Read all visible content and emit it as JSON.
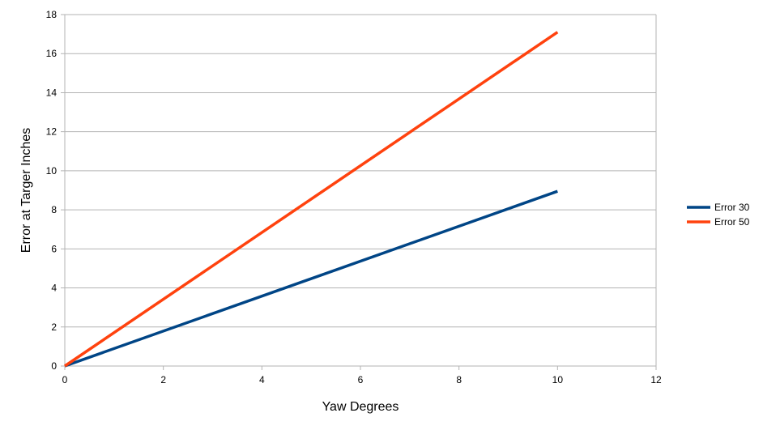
{
  "chart_data": {
    "type": "line",
    "xlabel": "Yaw Degrees",
    "ylabel": "Error at Targer Inches",
    "xlim": [
      0,
      12
    ],
    "ylim": [
      0,
      18
    ],
    "x_ticks": [
      0,
      2,
      4,
      6,
      8,
      10,
      12
    ],
    "y_ticks": [
      0,
      2,
      4,
      6,
      8,
      10,
      12,
      14,
      16,
      18
    ],
    "grid": true,
    "legend_position": "right",
    "series": [
      {
        "name": "Error 30",
        "color": "#004586",
        "x": [
          0,
          10
        ],
        "y": [
          0,
          8.95
        ]
      },
      {
        "name": "Error 50",
        "color": "#ff420e",
        "x": [
          0,
          10
        ],
        "y": [
          0,
          17.1
        ]
      }
    ]
  }
}
